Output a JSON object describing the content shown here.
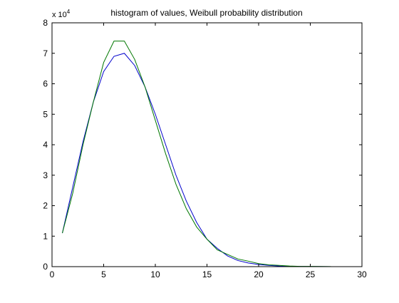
{
  "chart_data": {
    "type": "line",
    "title": "histogram of values, Weibull probability distribution",
    "xlabel": "",
    "ylabel": "",
    "xlim": [
      0,
      30
    ],
    "ylim": [
      0,
      8
    ],
    "y_multiplier_label": "x 10",
    "y_multiplier_exponent": "4",
    "x_ticks": [
      0,
      5,
      10,
      15,
      20,
      25,
      30
    ],
    "y_ticks": [
      0,
      1,
      2,
      3,
      4,
      5,
      6,
      7,
      8
    ],
    "grid": false,
    "legend": "none",
    "series": [
      {
        "color": "#0000cc",
        "x": [
          1,
          2,
          3,
          4,
          5,
          6,
          7,
          8,
          9,
          10,
          11,
          12,
          13,
          14,
          15,
          16,
          17,
          18,
          19,
          20,
          21,
          22,
          23,
          24,
          25,
          26,
          27
        ],
        "y": [
          1.1,
          2.6,
          4.1,
          5.4,
          6.4,
          6.9,
          7.0,
          6.6,
          5.9,
          5.0,
          4.0,
          3.0,
          2.15,
          1.45,
          0.9,
          0.6,
          0.35,
          0.2,
          0.12,
          0.07,
          0.04,
          0.02,
          0.01,
          0.005,
          0.003,
          0.002,
          0.001
        ]
      },
      {
        "color": "#007700",
        "x": [
          1,
          2,
          3,
          4,
          5,
          6,
          7,
          8,
          9,
          10,
          11,
          12,
          13,
          14,
          15,
          16,
          17,
          18,
          19,
          20,
          21,
          22,
          23,
          24,
          25,
          26,
          27
        ],
        "y": [
          1.1,
          2.4,
          4.0,
          5.4,
          6.7,
          7.4,
          7.4,
          6.8,
          5.9,
          4.8,
          3.7,
          2.7,
          1.9,
          1.3,
          0.9,
          0.55,
          0.4,
          0.25,
          0.18,
          0.1,
          0.06,
          0.04,
          0.02,
          0.01,
          0.008,
          0.005,
          0.003
        ]
      }
    ]
  }
}
